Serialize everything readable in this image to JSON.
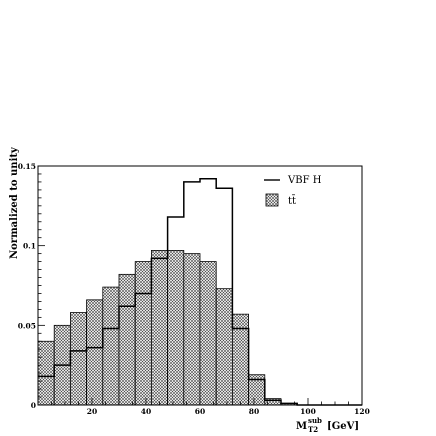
{
  "chart_data": {
    "type": "histogram",
    "xlabel": "M_T2^sub [GeV]",
    "xlabel_main": "M",
    "xlabel_sup": "sub",
    "xlabel_sub": "T2",
    "xlabel_unit": "[GeV]",
    "ylabel": "Normalized to unity",
    "xlim": [
      0,
      120
    ],
    "ylim": [
      0,
      0.15
    ],
    "x_ticks": [
      20,
      40,
      60,
      80,
      100,
      120
    ],
    "y_ticks": [
      {
        "value": 0,
        "label": "0"
      },
      {
        "value": 0.05,
        "label": "0.05"
      },
      {
        "value": 0.1,
        "label": "0.1"
      },
      {
        "value": 0.15,
        "label": "0.15"
      }
    ],
    "bin_edges": [
      0,
      6,
      12,
      18,
      24,
      30,
      36,
      42,
      48,
      54,
      60,
      66,
      72,
      78,
      84,
      90,
      96,
      102,
      108,
      114,
      120
    ],
    "series": [
      {
        "name": "VBF H",
        "style": "line",
        "color": "#000000",
        "values": [
          0.018,
          0.025,
          0.034,
          0.036,
          0.048,
          0.062,
          0.07,
          0.092,
          0.118,
          0.14,
          0.142,
          0.136,
          0.048,
          0.016,
          0.003,
          0.001,
          0.0,
          0.0,
          0.0,
          0.0
        ]
      },
      {
        "name": "t̄t",
        "legend_label": "tt̄",
        "style": "hatched",
        "color": "#000000",
        "values": [
          0.04,
          0.05,
          0.058,
          0.066,
          0.074,
          0.082,
          0.09,
          0.097,
          0.097,
          0.095,
          0.09,
          0.073,
          0.057,
          0.019,
          0.004,
          0.001,
          0.0,
          0.0,
          0.0,
          0.0
        ]
      }
    ],
    "legend_position": "top-right"
  }
}
